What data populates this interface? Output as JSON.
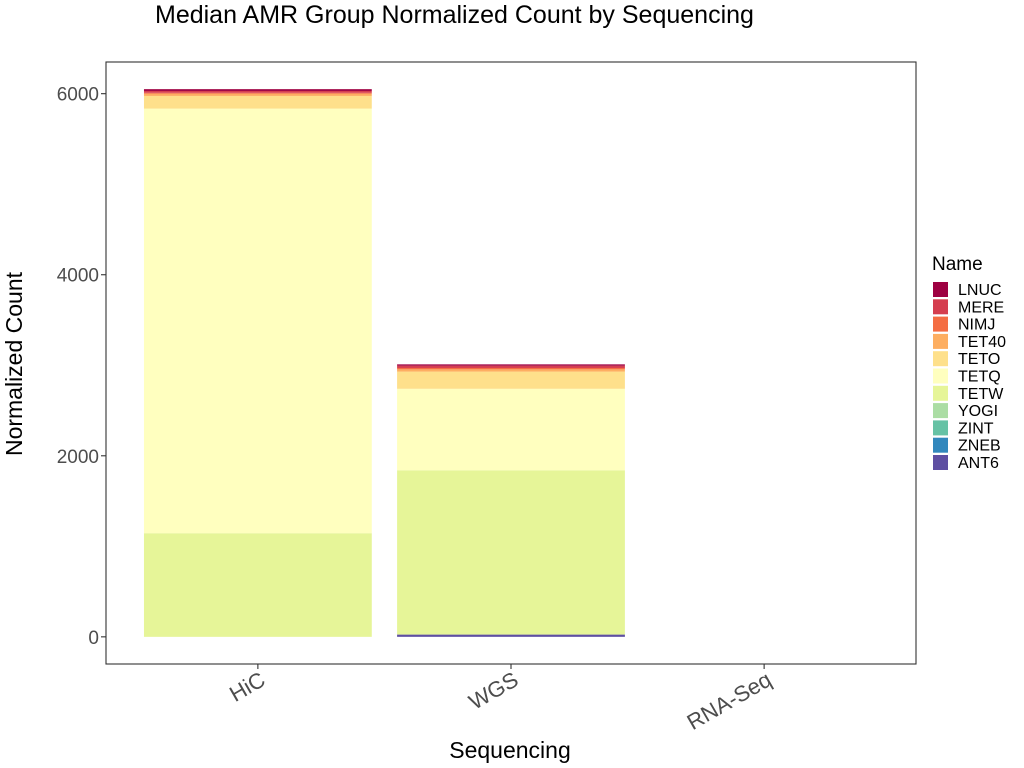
{
  "chart_data": {
    "type": "bar",
    "stacked": true,
    "title": "Median AMR Group Normalized Count by Sequencing",
    "xlabel": "Sequencing",
    "ylabel": "Normalized Count",
    "categories": [
      "HiC",
      "WGS",
      "RNA-Seq"
    ],
    "ylim": [
      -300,
      6350
    ],
    "yticks": [
      0,
      2000,
      4000,
      6000
    ],
    "ytick_labels": [
      "0",
      "2000",
      "4000",
      "6000"
    ],
    "grid": false,
    "legend": {
      "title": "Name",
      "placement": "right",
      "entries": [
        "LNUC",
        "MERE",
        "NIMJ",
        "TET40",
        "TETO",
        "TETQ",
        "TETW",
        "YOGI",
        "ZINT",
        "ZNEB",
        "ANT6"
      ]
    },
    "series": [
      {
        "name": "LNUC",
        "color": "#9E0142",
        "values": [
          20,
          15,
          0
        ]
      },
      {
        "name": "MERE",
        "color": "#D53E4F",
        "values": [
          20,
          25,
          0
        ]
      },
      {
        "name": "NIMJ",
        "color": "#F46D43",
        "values": [
          10,
          15,
          0
        ]
      },
      {
        "name": "TET40",
        "color": "#FDAE61",
        "values": [
          25,
          25,
          0
        ]
      },
      {
        "name": "TETO",
        "color": "#FEE08B",
        "values": [
          140,
          190,
          0
        ]
      },
      {
        "name": "TETQ",
        "color": "#FFFFBF",
        "values": [
          4690,
          900,
          0
        ]
      },
      {
        "name": "TETW",
        "color": "#E6F598",
        "values": [
          1145,
          1815,
          0
        ]
      },
      {
        "name": "YOGI",
        "color": "#ABDDA4",
        "values": [
          0,
          0,
          0
        ]
      },
      {
        "name": "ZINT",
        "color": "#66C2A5",
        "values": [
          0,
          0,
          0
        ]
      },
      {
        "name": "ZNEB",
        "color": "#3288BD",
        "values": [
          0,
          0,
          0
        ]
      },
      {
        "name": "ANT6",
        "color": "#5E4FA2",
        "values": [
          0,
          25,
          0
        ]
      }
    ]
  }
}
